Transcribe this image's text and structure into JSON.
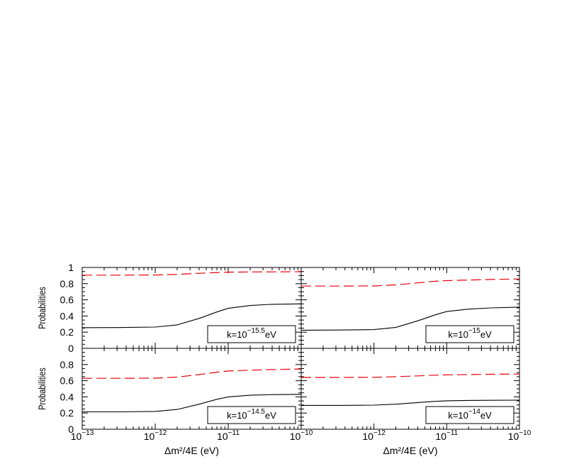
{
  "chart_data": {
    "type": "line",
    "layout": "2x2 grid of panels",
    "x_scale": "log",
    "xlim": [
      1e-13,
      1e-10
    ],
    "ylim": [
      0,
      1
    ],
    "xlabel": "Δm²/4E (eV)",
    "ylabel": "Probabilities",
    "x_tick_labels": [
      {
        "base": "10",
        "exp": "−13",
        "value": 1e-13
      },
      {
        "base": "10",
        "exp": "−12",
        "value": 1e-12
      },
      {
        "base": "10",
        "exp": "−11",
        "value": 1e-11
      },
      {
        "base": "10",
        "exp": "−10",
        "value": 1e-10
      }
    ],
    "y_tick_labels": [
      "0",
      "0.2",
      "0.4",
      "0.6",
      "0.8",
      "1"
    ],
    "y_tick_values": [
      0,
      0.2,
      0.4,
      0.6,
      0.8,
      1
    ],
    "series_styles": {
      "solid": {
        "color": "#000000",
        "dash": "none"
      },
      "dashed": {
        "color": "#e8000b",
        "dash": "14 6"
      }
    },
    "x": [
      1e-13,
      3e-13,
      1e-12,
      2e-12,
      4e-12,
      7e-12,
      1e-11,
      2e-11,
      4e-11,
      1e-10
    ],
    "panels": [
      {
        "label_prefix": "k=10",
        "label_exp": "−15.5",
        "label_suffix": "eV",
        "solid": [
          0.255,
          0.257,
          0.263,
          0.29,
          0.37,
          0.45,
          0.495,
          0.53,
          0.545,
          0.55
        ],
        "dashed": [
          0.905,
          0.905,
          0.907,
          0.915,
          0.928,
          0.938,
          0.942,
          0.945,
          0.946,
          0.947
        ]
      },
      {
        "label_prefix": "k=10",
        "label_exp": "−15",
        "label_suffix": "eV",
        "solid": [
          0.225,
          0.226,
          0.232,
          0.26,
          0.34,
          0.415,
          0.455,
          0.485,
          0.5,
          0.51
        ],
        "dashed": [
          0.77,
          0.77,
          0.772,
          0.785,
          0.81,
          0.83,
          0.838,
          0.845,
          0.852,
          0.858
        ]
      },
      {
        "label_prefix": "k=10",
        "label_exp": "−14.5",
        "label_suffix": "eV",
        "solid": [
          0.215,
          0.215,
          0.22,
          0.245,
          0.31,
          0.37,
          0.4,
          0.42,
          0.428,
          0.432
        ],
        "dashed": [
          0.63,
          0.63,
          0.632,
          0.645,
          0.675,
          0.705,
          0.72,
          0.73,
          0.738,
          0.745
        ]
      },
      {
        "label_prefix": "k=10",
        "label_exp": "−14",
        "label_suffix": "eV",
        "solid": [
          0.295,
          0.295,
          0.298,
          0.31,
          0.33,
          0.345,
          0.352,
          0.356,
          0.358,
          0.36
        ],
        "dashed": [
          0.64,
          0.64,
          0.642,
          0.65,
          0.66,
          0.668,
          0.672,
          0.676,
          0.68,
          0.683
        ]
      }
    ]
  }
}
